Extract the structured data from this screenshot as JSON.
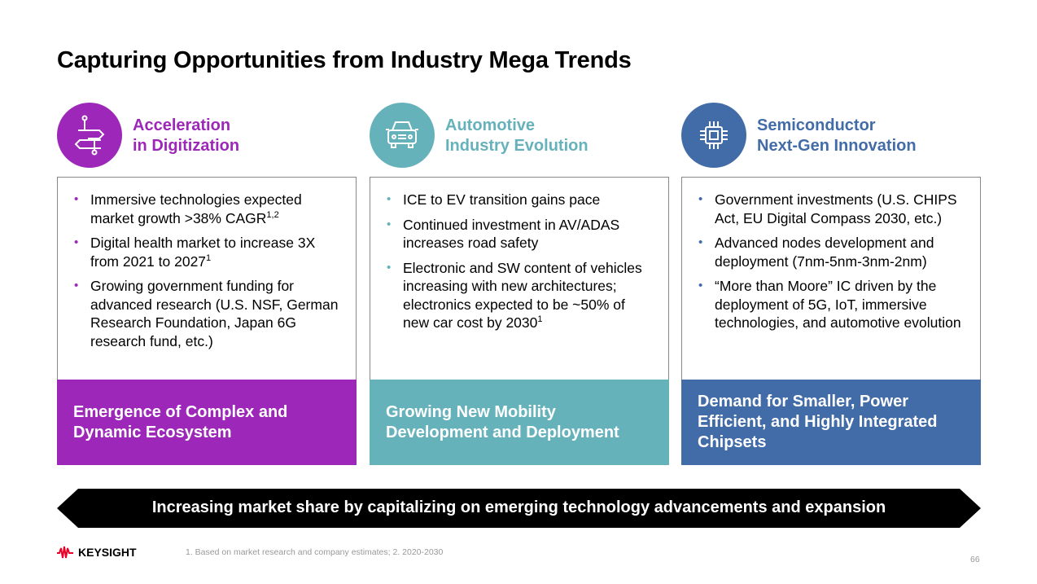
{
  "title": "Capturing Opportunities from Industry Mega Trends",
  "colors": {
    "purple": "#9C27B8",
    "teal": "#66B2BB",
    "blue": "#426CA8"
  },
  "columns": [
    {
      "icon": "circuit-arrows-icon",
      "heading1": "Acceleration",
      "heading2": "in Digitization",
      "bullets": [
        {
          "text": "Immersive technologies expected market growth >38% CAGR",
          "sup": "1,2"
        },
        {
          "text": "Digital health market to increase 3X from 2021 to 2027",
          "sup": "1"
        },
        {
          "text": "Growing government funding for advanced research (U.S. NSF, German Research Foundation, Japan 6G research fund, etc.)",
          "sup": ""
        }
      ],
      "footer": "Emergence of Complex and Dynamic Ecosystem"
    },
    {
      "icon": "car-icon",
      "heading1": "Automotive",
      "heading2": "Industry Evolution",
      "bullets": [
        {
          "text": "ICE to EV transition gains pace",
          "sup": ""
        },
        {
          "text": "Continued investment in AV/ADAS increases road safety",
          "sup": ""
        },
        {
          "text": "Electronic and SW content of vehicles increasing with new architectures; electronics expected to be ~50% of new car cost by 2030",
          "sup": "1"
        }
      ],
      "footer": "Growing New Mobility Development and Deployment"
    },
    {
      "icon": "chip-icon",
      "heading1": "Semiconductor",
      "heading2": "Next-Gen Innovation",
      "bullets": [
        {
          "text": "Government investments (U.S. CHIPS Act, EU Digital Compass 2030, etc.)",
          "sup": ""
        },
        {
          "text": "Advanced nodes development and deployment (7nm-5nm-3nm-2nm)",
          "sup": ""
        },
        {
          "text": "“More than Moore” IC driven by the deployment of 5G, IoT, immersive technologies, and automotive evolution",
          "sup": ""
        }
      ],
      "footer": "Demand for Smaller, Power Efficient, and Highly Integrated Chipsets"
    }
  ],
  "banner": "Increasing market share by capitalizing on emerging technology advancements and expansion",
  "logo": "KEYSIGHT",
  "footnote": "1. Based on market research and company estimates; 2. 2020-2030",
  "page_number": "66"
}
